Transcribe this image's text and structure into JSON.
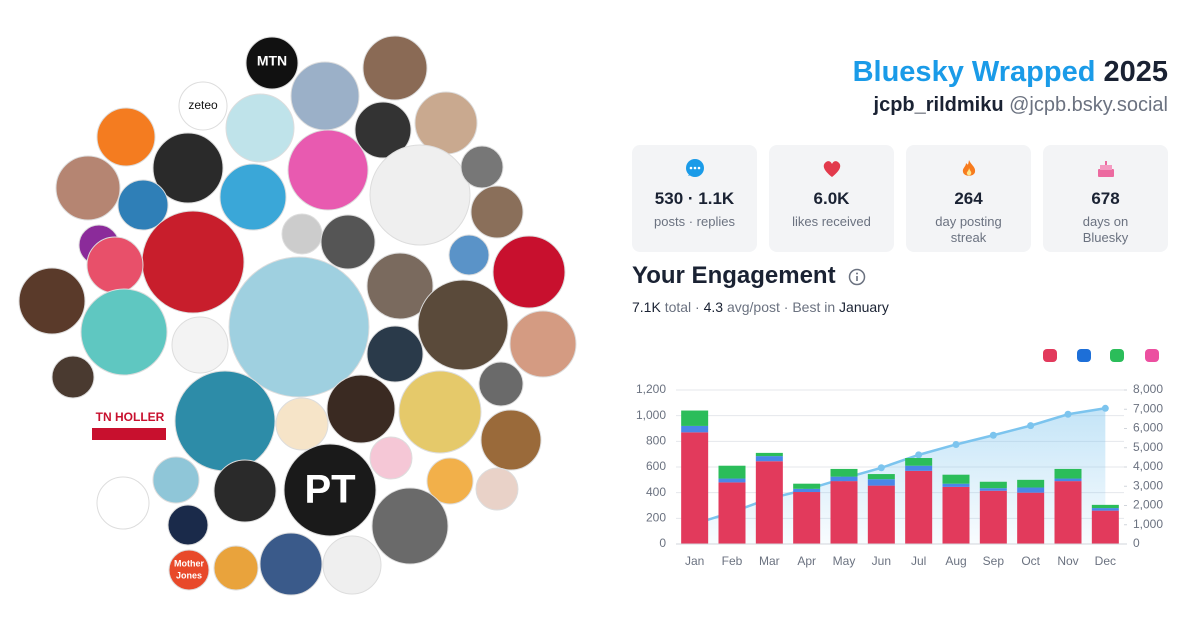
{
  "header": {
    "title_brand": "Bluesky Wrapped",
    "title_year": "2025",
    "display_name": "jcpb_rildmiku",
    "handle": "@jcpb.bsky.social"
  },
  "stats": [
    {
      "value": "530 · 1.1K",
      "label": "posts · replies"
    },
    {
      "value": "6.0K",
      "label": "likes received"
    },
    {
      "value": "264",
      "label": "day posting streak"
    },
    {
      "value": "678",
      "label": "days on Bluesky"
    }
  ],
  "engagement": {
    "title": "Your Engagement",
    "total": "7.1K",
    "total_label": "total ·",
    "avg": "4.3",
    "avg_label": "avg/post · Best in",
    "best": "January"
  },
  "avatar_logos": [
    "MTN",
    "zeteo",
    "PT",
    "TN HOLLER",
    "Mother",
    "Jones"
  ],
  "chart_data": {
    "type": "bar",
    "stacked": true,
    "grid": true,
    "categories": [
      "Jan",
      "Feb",
      "Mar",
      "Apr",
      "May",
      "Jun",
      "Jul",
      "Aug",
      "Sep",
      "Oct",
      "Nov",
      "Dec"
    ],
    "series": [
      {
        "color": "#e23a5c",
        "values": [
          870,
          480,
          645,
          405,
          490,
          455,
          570,
          445,
          415,
          400,
          490,
          260
        ]
      },
      {
        "color": "#4a86e8",
        "values": [
          50,
          30,
          40,
          25,
          35,
          50,
          40,
          25,
          20,
          40,
          20,
          20
        ]
      },
      {
        "color": "#2bbd5a",
        "values": [
          120,
          100,
          25,
          40,
          60,
          40,
          60,
          70,
          50,
          60,
          75,
          25
        ]
      },
      {
        "type": "line",
        "axis": "y2",
        "color": "#7cc4ee",
        "values": [
          1040,
          1650,
          2360,
          2830,
          3410,
          3960,
          4630,
          5170,
          5650,
          6150,
          6740,
          7050
        ]
      }
    ],
    "ylim": [
      0,
      1200
    ],
    "yticks": [
      0,
      200,
      400,
      600,
      800,
      {
        "value": 1000,
        "label": "1,000"
      },
      {
        "value": 1200,
        "label": "1,200"
      }
    ],
    "y2lim": [
      0,
      8000
    ],
    "y2ticks": [
      0,
      {
        "value": 1000,
        "label": "1,000"
      },
      {
        "value": 2000,
        "label": "2,000"
      },
      {
        "value": 3000,
        "label": "3,000"
      },
      {
        "value": 4000,
        "label": "4,000"
      },
      {
        "value": 5000,
        "label": "5,000"
      },
      {
        "value": 6000,
        "label": "6,000"
      },
      {
        "value": 7000,
        "label": "7,000"
      },
      {
        "value": 8000,
        "label": "8,000"
      }
    ]
  }
}
